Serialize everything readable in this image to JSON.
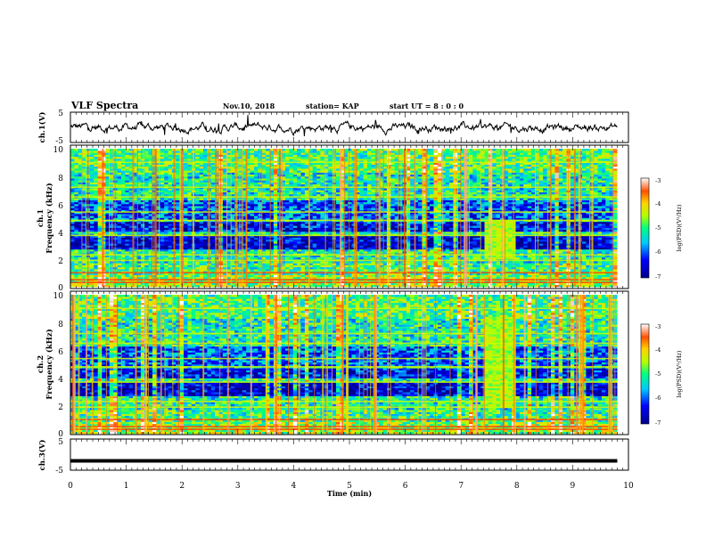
{
  "header": {
    "title": "VLF Spectra",
    "date": "Nov.10, 2018",
    "station": "station= KAP",
    "start": "start  UT =  8 : 0 : 0"
  },
  "chart_data": [
    {
      "type": "line",
      "name": "ch1-waveform",
      "ylabel": "ch.1(V)",
      "ylim": [
        -5,
        5
      ],
      "yticks": [
        "5",
        "-5"
      ],
      "xlim": [
        0,
        10
      ]
    },
    {
      "type": "heatmap",
      "name": "ch1-spectrogram",
      "ylabel_line1": "ch.1",
      "ylabel_line2": "Frequency (kHz)",
      "ylim": [
        0,
        10
      ],
      "yticks": [
        "10",
        "8",
        "6",
        "4",
        "2",
        "0"
      ],
      "xlim": [
        0,
        10
      ],
      "colorbar": {
        "label": "log(PSD)(V²/Hz)",
        "ticks": [
          "-3",
          "-4",
          "-5",
          "-6",
          "-7"
        ],
        "range": [
          -7,
          -3
        ]
      },
      "event_band_min": [
        7.4,
        7.95
      ],
      "event_freq_khz": [
        2.0,
        4.8
      ]
    },
    {
      "type": "heatmap",
      "name": "ch2-spectrogram",
      "ylabel_line1": "ch.2",
      "ylabel_line2": "Frequency (kHz)",
      "ylim": [
        0,
        10
      ],
      "yticks": [
        "10",
        "8",
        "6",
        "4",
        "2",
        "0"
      ],
      "xlim": [
        0,
        10
      ],
      "colorbar": {
        "label": "log(PSD)(V²/Hz)",
        "ticks": [
          "-3",
          "-4",
          "-5",
          "-6",
          "-7"
        ],
        "range": [
          -7,
          -3
        ]
      },
      "event_band_min": [
        7.4,
        7.95
      ],
      "event_freq_khz": [
        1.8,
        8.4
      ]
    },
    {
      "type": "line",
      "name": "ch3-waveform",
      "ylabel": "ch.3(V)",
      "ylim": [
        -5,
        5
      ],
      "yticks": [
        "5",
        "-5"
      ],
      "xlim": [
        0,
        10
      ],
      "x": [
        0,
        9.8
      ],
      "y": [
        -2,
        -2
      ]
    }
  ],
  "xaxis": {
    "label": "Time (min)",
    "ticks": [
      "0",
      "1",
      "2",
      "3",
      "4",
      "5",
      "6",
      "7",
      "8",
      "9",
      "10"
    ]
  }
}
